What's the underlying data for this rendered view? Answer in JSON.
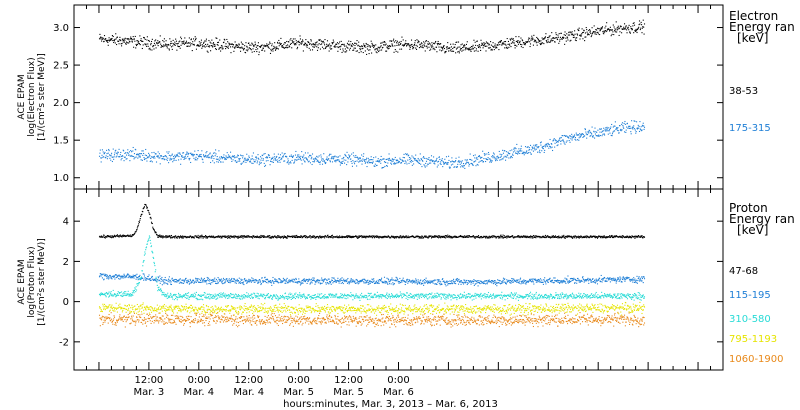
{
  "chart_data": [
    {
      "type": "scatter",
      "ylabel_lines": [
        "ACE EPAM",
        "log(Electron Flux)",
        "[1/(cm²s ster MeV)]"
      ],
      "ylim": [
        0.85,
        3.3
      ],
      "yticks": [
        {
          "value": 1.0,
          "label": "1.0"
        },
        {
          "value": 1.5,
          "label": "1.5"
        },
        {
          "value": 2.0,
          "label": "2.0"
        },
        {
          "value": 2.5,
          "label": "2.5"
        },
        {
          "value": 3.0,
          "label": "3.0"
        }
      ],
      "legend_title": [
        "Electron",
        "Energy ran",
        "[keV]"
      ],
      "series": [
        {
          "name": "38-53",
          "color": "#000000",
          "x": [
            0,
            6,
            12,
            18,
            24,
            30,
            36,
            42,
            48,
            54,
            60,
            66,
            72,
            78,
            84,
            90,
            96,
            102,
            108,
            114,
            120,
            126,
            131
          ],
          "values": [
            2.85,
            2.83,
            2.8,
            2.78,
            2.8,
            2.77,
            2.74,
            2.76,
            2.8,
            2.78,
            2.75,
            2.74,
            2.78,
            2.77,
            2.72,
            2.74,
            2.78,
            2.82,
            2.85,
            2.9,
            2.96,
            3.0,
            3.02
          ],
          "spread": 0.06
        },
        {
          "name": "175-315",
          "color": "#1f7fd6",
          "x": [
            0,
            6,
            12,
            18,
            24,
            30,
            36,
            42,
            48,
            54,
            60,
            66,
            72,
            78,
            84,
            90,
            96,
            100,
            104,
            108,
            112,
            116,
            120,
            124,
            128,
            131
          ],
          "values": [
            1.3,
            1.32,
            1.3,
            1.28,
            1.3,
            1.27,
            1.25,
            1.26,
            1.27,
            1.26,
            1.25,
            1.22,
            1.24,
            1.24,
            1.2,
            1.24,
            1.3,
            1.35,
            1.38,
            1.45,
            1.52,
            1.57,
            1.6,
            1.65,
            1.68,
            1.7
          ],
          "spread": 0.06
        }
      ]
    },
    {
      "type": "scatter",
      "ylabel_lines": [
        "ACE EPAM",
        "log(Proton Flux)",
        "[1/(cm²s ster MeV)]"
      ],
      "ylim": [
        -3.4,
        5.6
      ],
      "yticks": [
        {
          "value": -2,
          "label": "-2"
        },
        {
          "value": 0,
          "label": "0"
        },
        {
          "value": 2,
          "label": "2"
        },
        {
          "value": 4,
          "label": "4"
        }
      ],
      "legend_title": [
        "Proton",
        "Energy ran",
        "[keV]"
      ],
      "series": [
        {
          "name": "47-68",
          "color": "#000000",
          "x": [
            0,
            8,
            9,
            10,
            11,
            12,
            13,
            14,
            16,
            30,
            60,
            90,
            131
          ],
          "values": [
            3.25,
            3.3,
            3.6,
            4.3,
            4.9,
            4.4,
            3.6,
            3.3,
            3.25,
            3.25,
            3.25,
            3.25,
            3.25
          ],
          "spread": 0.05
        },
        {
          "name": "115-195",
          "color": "#1f7fd6",
          "x": [
            0,
            10,
            12,
            14,
            16,
            30,
            60,
            90,
            120,
            131
          ],
          "values": [
            1.3,
            1.25,
            1.2,
            1.1,
            1.05,
            1.05,
            1.05,
            1.0,
            1.1,
            1.15
          ],
          "spread": 0.12
        },
        {
          "name": "310-580",
          "color": "#28dbd6",
          "x": [
            0,
            8,
            10,
            11,
            12,
            13,
            14,
            16,
            30,
            60,
            90,
            131
          ],
          "values": [
            0.4,
            0.4,
            1.2,
            2.6,
            3.3,
            2.2,
            0.7,
            0.3,
            0.3,
            0.3,
            0.3,
            0.3
          ],
          "spread": 0.12
        },
        {
          "name": "795-1193",
          "color": "#e6e400",
          "x": [
            0,
            30,
            60,
            90,
            131
          ],
          "values": [
            -0.3,
            -0.35,
            -0.35,
            -0.35,
            -0.3
          ],
          "spread": 0.18
        },
        {
          "name": "1060-1900",
          "color": "#e8891a",
          "x": [
            0,
            30,
            60,
            90,
            131
          ],
          "values": [
            -0.85,
            -0.85,
            -0.9,
            -0.9,
            -0.85
          ],
          "spread": 0.22
        }
      ]
    }
  ],
  "x_axis": {
    "range_hours": [
      -6,
      150
    ],
    "ticks": [
      {
        "hours": 12,
        "time": "12:00",
        "date": "Mar. 3"
      },
      {
        "hours": 24,
        "time": "0:00",
        "date": "Mar. 4"
      },
      {
        "hours": 36,
        "time": "12:00",
        "date": "Mar. 4"
      },
      {
        "hours": 48,
        "time": "0:00",
        "date": "Mar. 5"
      },
      {
        "hours": 60,
        "time": "12:00",
        "date": "Mar. 5"
      },
      {
        "hours": 72,
        "time": "0:00",
        "date": "Mar. 6"
      }
    ],
    "label": "hours:minutes, Mar.  3, 2013 – Mar.  6, 2013"
  }
}
